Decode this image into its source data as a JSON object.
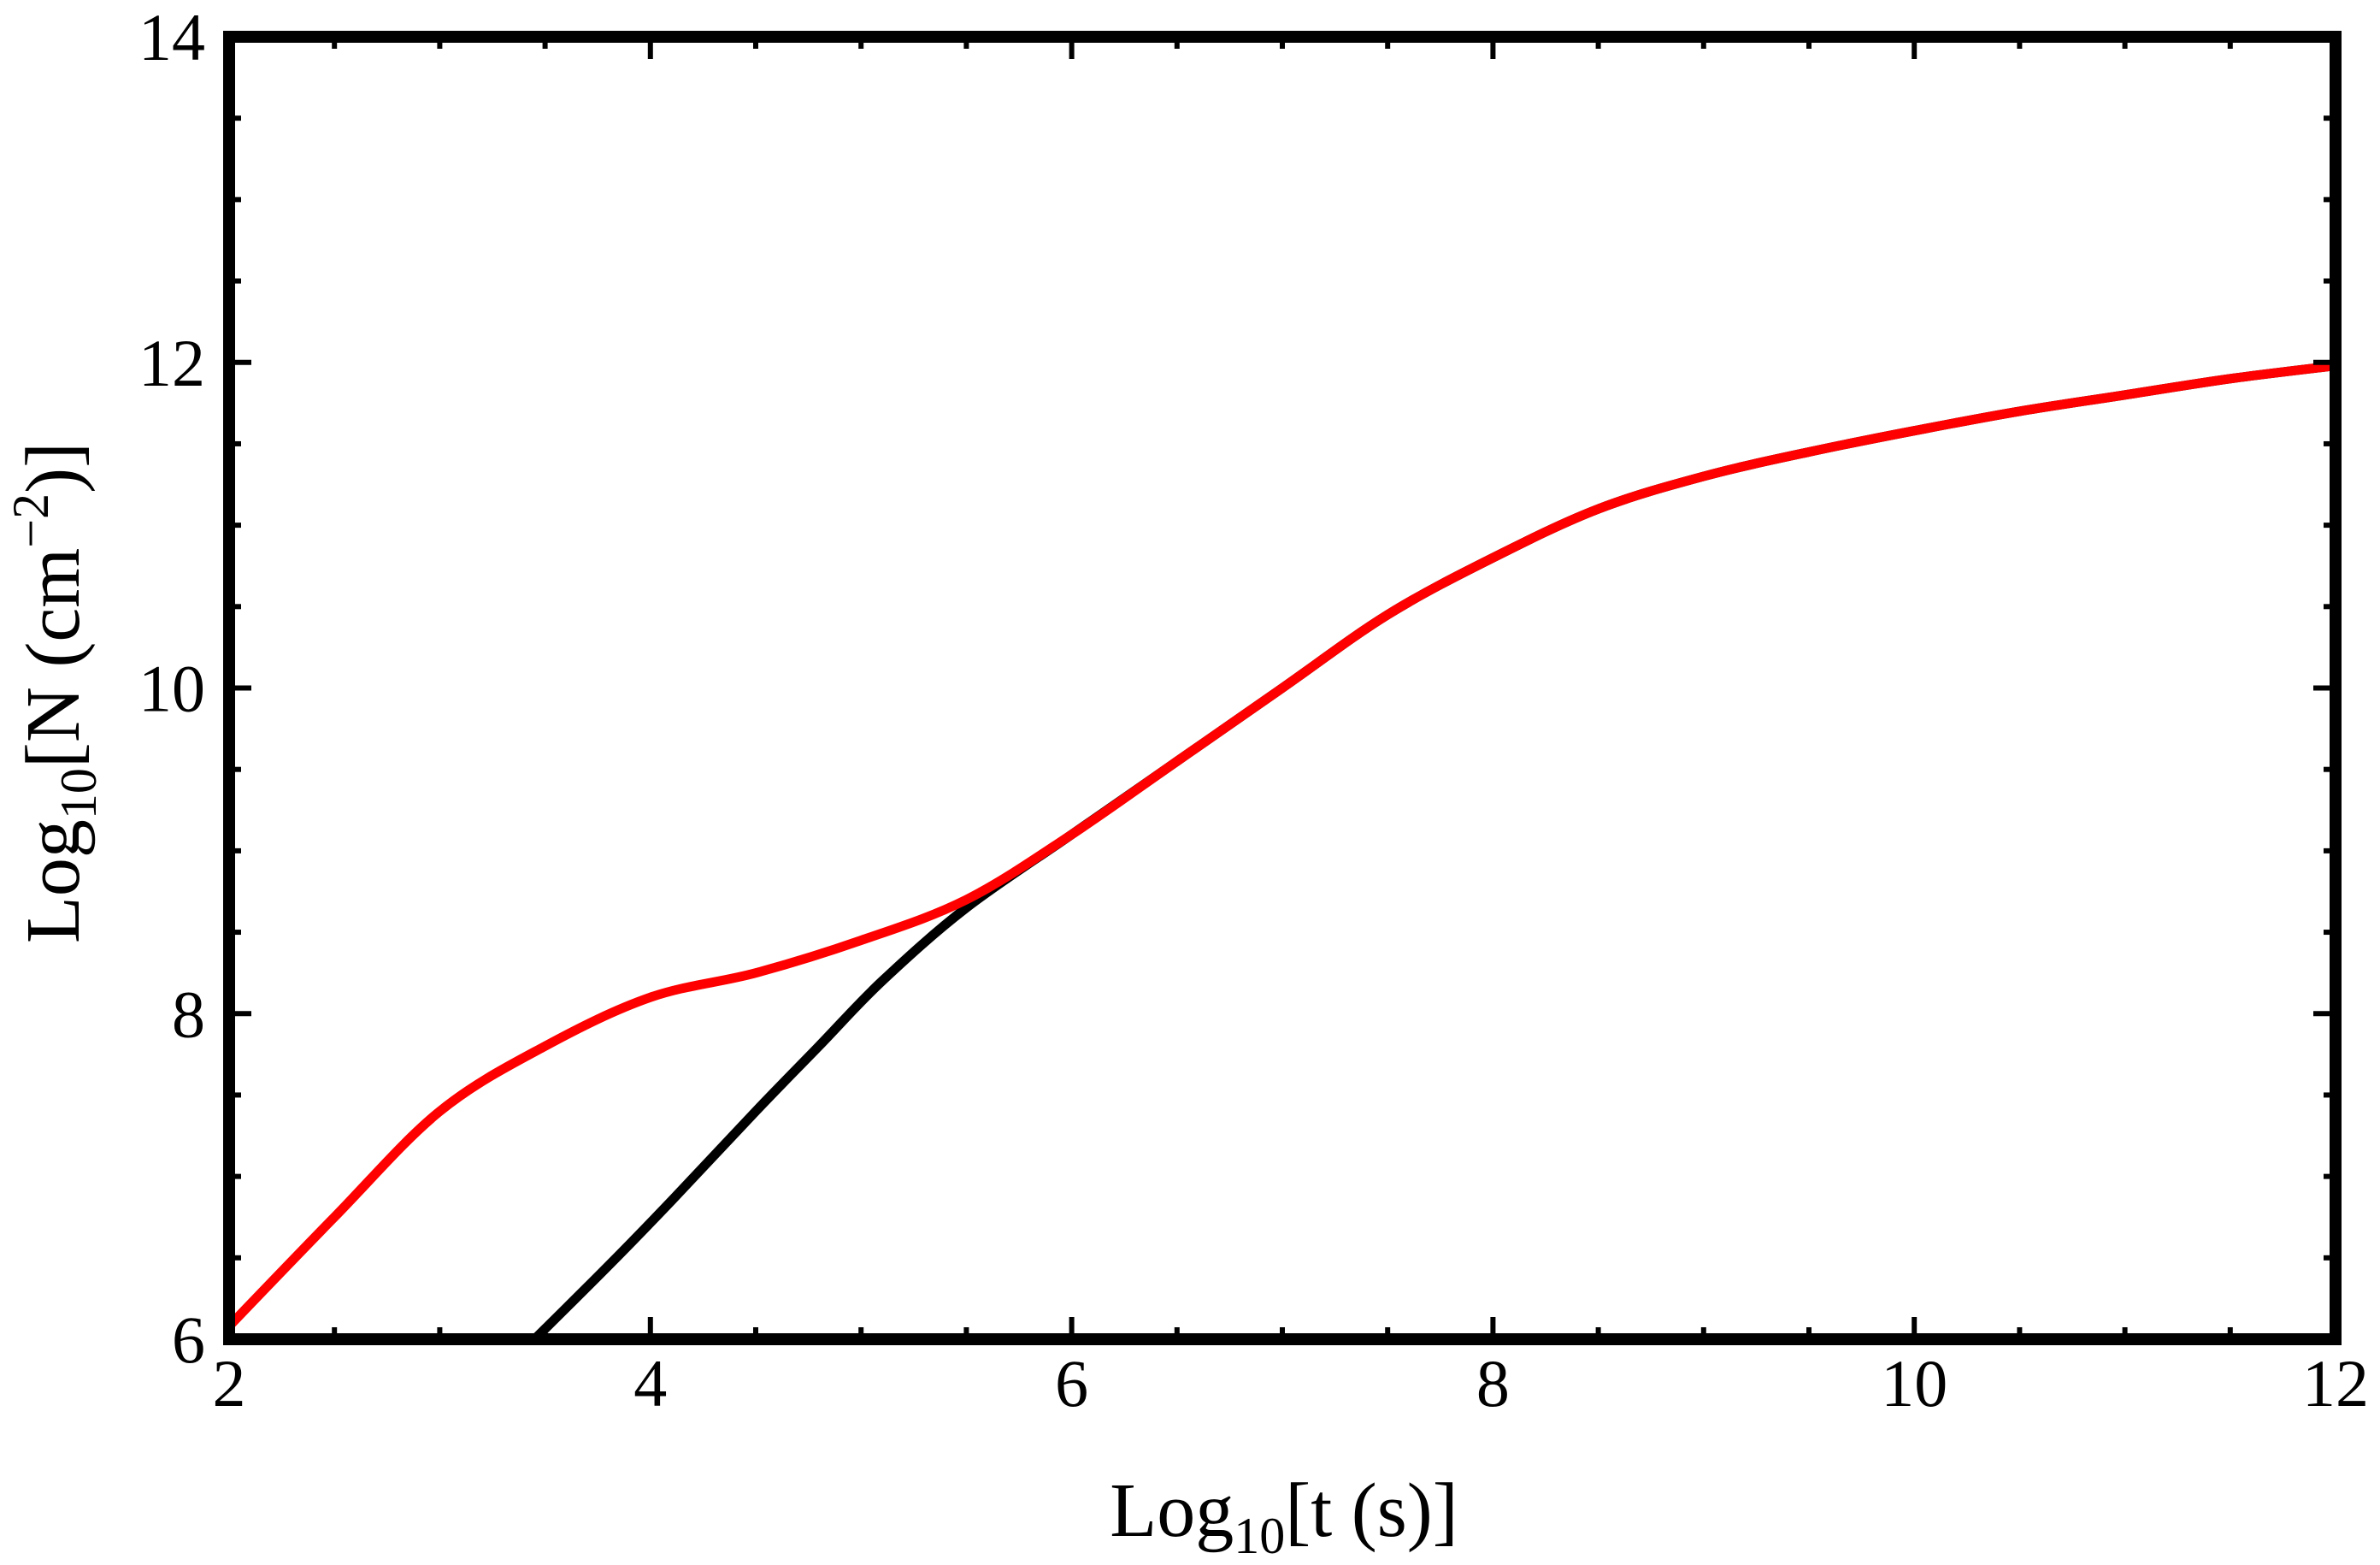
{
  "chart_data": {
    "type": "line",
    "title": "",
    "xlabel": "Log10[t (s)]",
    "ylabel": "Log10[N (cm^-2)]",
    "xlabel_parts": {
      "main": "Log",
      "sub": "10",
      "rest": "[t (s)]"
    },
    "ylabel_parts": {
      "main": "Log",
      "sub": "10",
      "rest1": "[N (cm",
      "sup": "−2",
      "rest2": ")]"
    },
    "xlim": [
      2,
      12
    ],
    "ylim": [
      6,
      14
    ],
    "x_ticks": [
      2,
      4,
      6,
      8,
      10,
      12
    ],
    "y_ticks": [
      6,
      8,
      10,
      12,
      14
    ],
    "x_tick_labels": [
      "2",
      "4",
      "6",
      "8",
      "10",
      "12"
    ],
    "y_tick_labels": [
      "6",
      "8",
      "10",
      "12",
      "14"
    ],
    "grid": false,
    "legend": "none",
    "series": [
      {
        "color": "#000000",
        "x": [
          3.45,
          3.8,
          4.1,
          4.5,
          4.8,
          5.1,
          5.5,
          6.0,
          6.5,
          7.0,
          7.5,
          8.0,
          8.5,
          9.0,
          9.5,
          10.0,
          10.5,
          11.0,
          11.5,
          12.0
        ],
        "y": [
          6.0,
          6.45,
          6.85,
          7.4,
          7.8,
          8.2,
          8.65,
          9.1,
          9.55,
          10.0,
          10.45,
          10.8,
          11.1,
          11.3,
          11.45,
          11.58,
          11.7,
          11.8,
          11.9,
          11.98
        ]
      },
      {
        "color": "#ff0000",
        "x": [
          2.0,
          2.5,
          3.0,
          3.5,
          4.0,
          4.5,
          5.0,
          5.5,
          6.0,
          6.5,
          7.0,
          7.5,
          8.0,
          8.5,
          9.0,
          9.5,
          10.0,
          10.5,
          11.0,
          11.5,
          12.0
        ],
        "y": [
          6.08,
          6.75,
          7.4,
          7.8,
          8.1,
          8.25,
          8.45,
          8.7,
          9.1,
          9.55,
          10.0,
          10.45,
          10.8,
          11.1,
          11.3,
          11.45,
          11.58,
          11.7,
          11.8,
          11.9,
          11.98
        ]
      }
    ]
  }
}
